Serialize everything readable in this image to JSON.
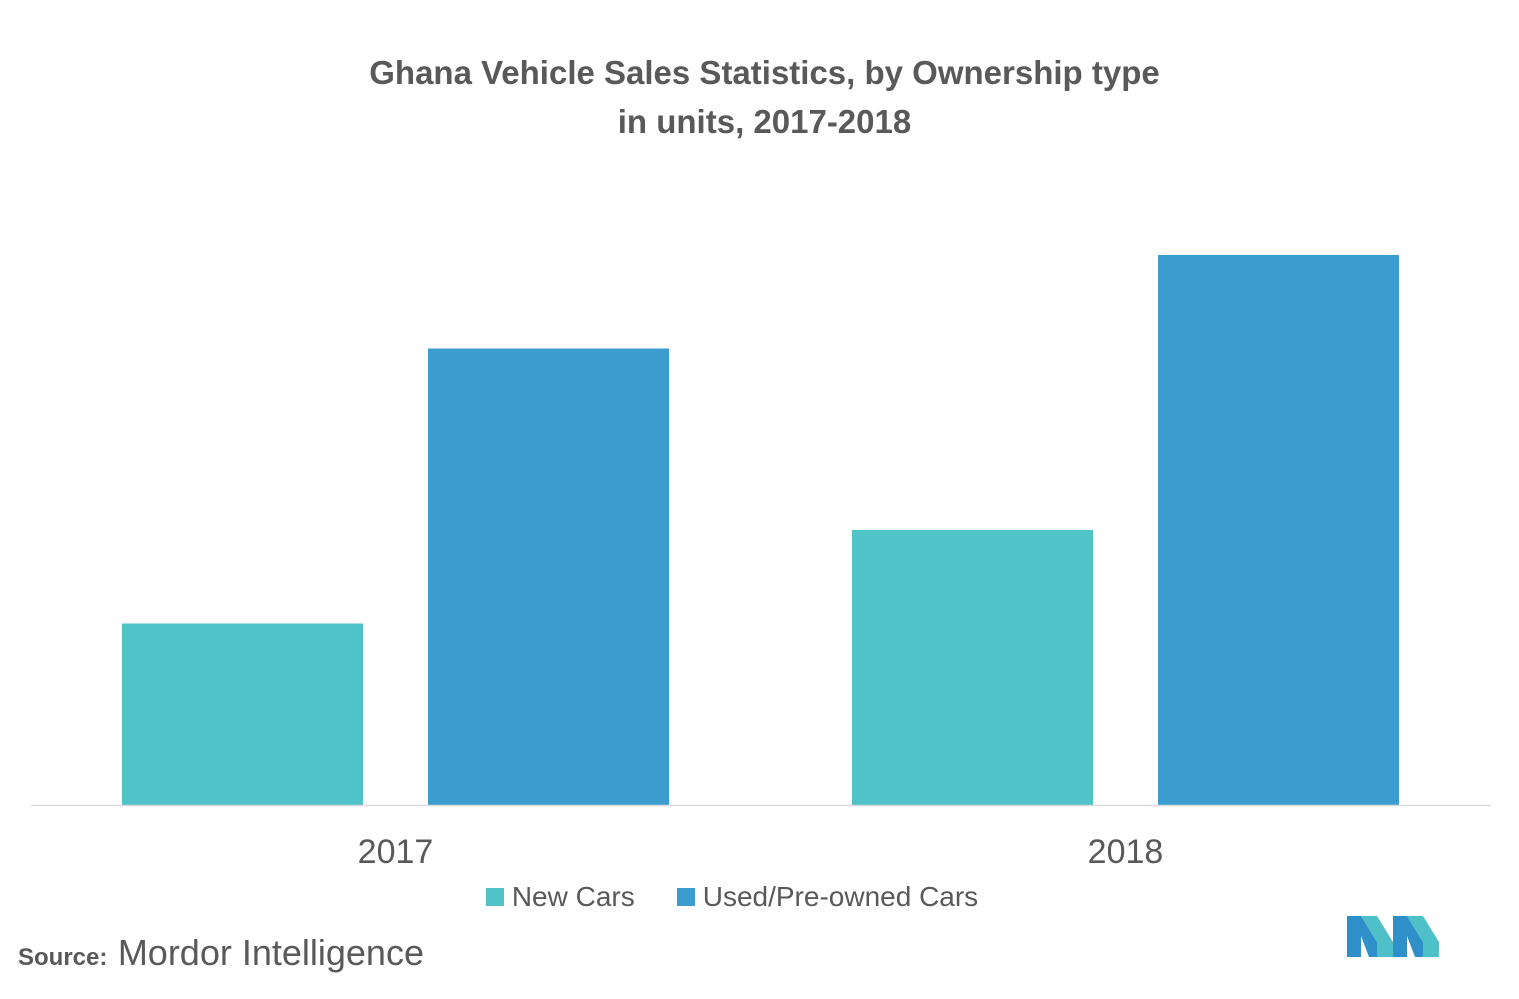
{
  "title": {
    "line1": "Ghana Vehicle Sales Statistics, by Ownership type",
    "line2": "in units, 2017-2018"
  },
  "source": {
    "label": "Source:",
    "value": "Mordor Intelligence"
  },
  "logo": {
    "icon": "mordor-intelligence-logo",
    "colors": [
      "#2f8fc9",
      "#4fc0c8"
    ]
  },
  "chart_data": {
    "type": "bar",
    "title": "Ghana Vehicle Sales Statistics, by Ownership type",
    "subtitle": "in units, 2017-2018",
    "categories": [
      "2017",
      "2018"
    ],
    "series": [
      {
        "name": "New Cars",
        "color": "#4fc3c8",
        "values": [
          33,
          50
        ]
      },
      {
        "name": "Used/Pre-owned Cars",
        "color": "#3b9dcf",
        "values": [
          83,
          100
        ]
      }
    ],
    "ylim": [
      0,
      100
    ],
    "y_axis_visible": false,
    "grid": false,
    "legend": "bottom-center",
    "data_labels": false
  }
}
